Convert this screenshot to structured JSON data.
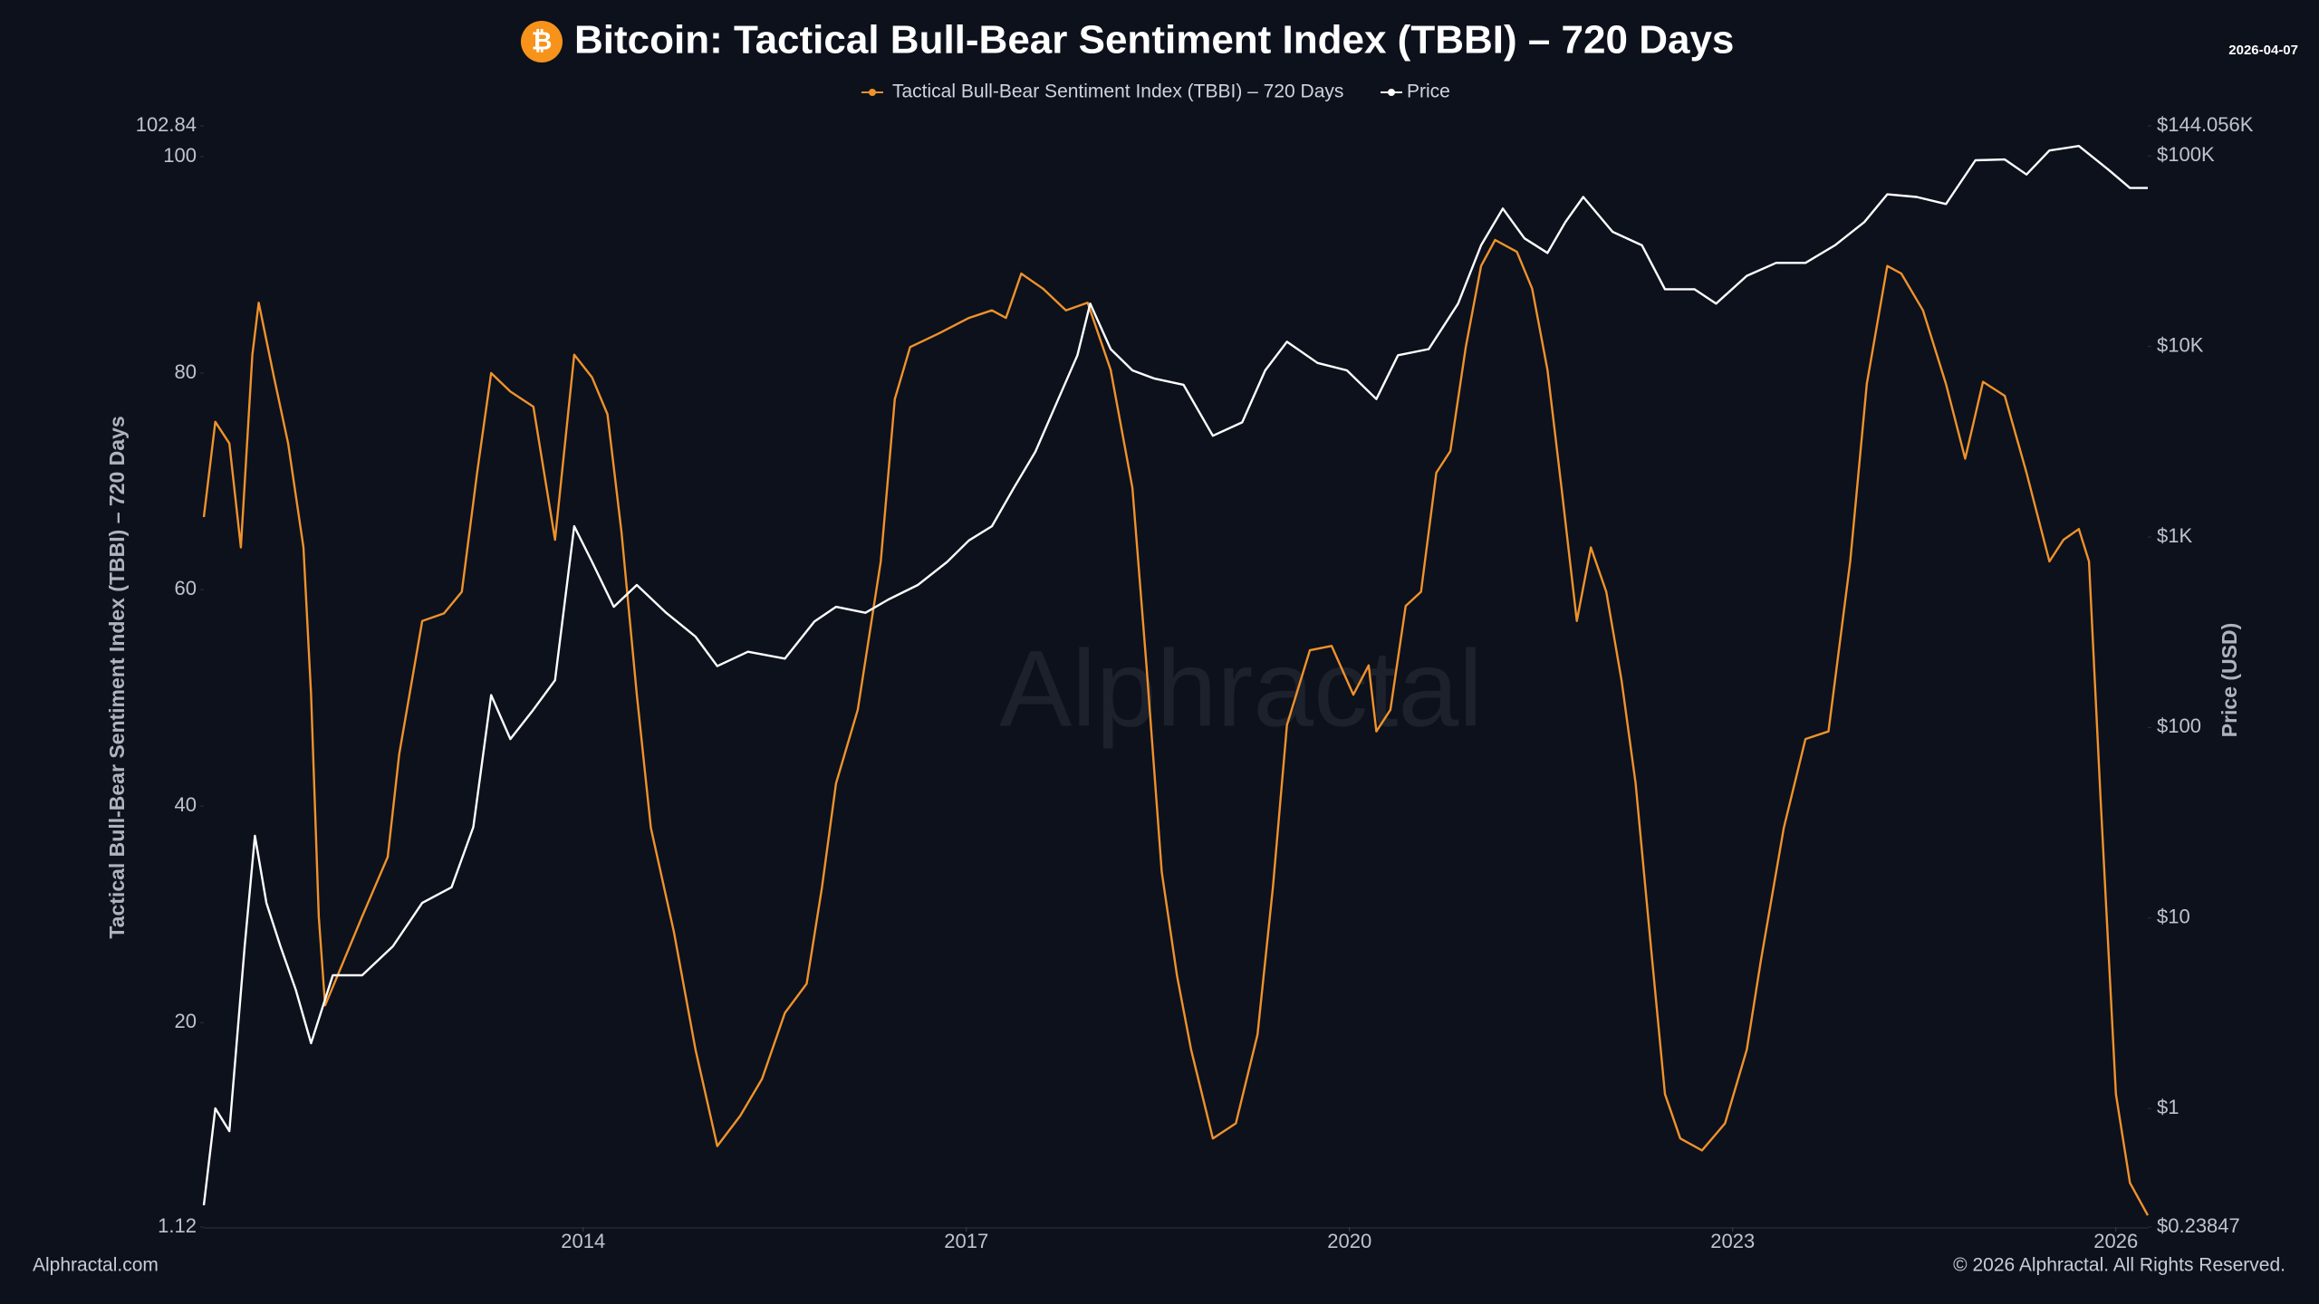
{
  "chart_data": {
    "type": "line",
    "title": "Bitcoin: Tactical Bull-Bear Sentiment Index (TBBI) – 720 Days",
    "title_icon": "₿",
    "date": "2026-04-07",
    "ylabel": "Tactical Bull-Bear Sentiment Index (TBBI) – 720 Days",
    "y2label": "Price (USD)",
    "watermark": "Alphractal",
    "footer_left": "Alphractal.com",
    "footer_right": "© 2026 Alphractal. All Rights Reserved.",
    "xlim": [
      2011.03,
      2026.25
    ],
    "xticks": [
      2014,
      2017,
      2020,
      2023,
      2026
    ],
    "ylim": [
      1.12,
      102.84
    ],
    "yticks": [
      1.12,
      20,
      40,
      60,
      80,
      100,
      102.84
    ],
    "y2lim": [
      0.23847,
      144056
    ],
    "y2log": true,
    "y2ticks": [
      {
        "value": 0.23847,
        "label": "$0.23847"
      },
      {
        "value": 1,
        "label": "$1"
      },
      {
        "value": 10,
        "label": "$10"
      },
      {
        "value": 100,
        "label": "$100"
      },
      {
        "value": 1000,
        "label": "$1K"
      },
      {
        "value": 10000,
        "label": "$10K"
      },
      {
        "value": 100000,
        "label": "$100K"
      },
      {
        "value": 144056,
        "label": "$144.056K"
      }
    ],
    "grid": false,
    "series": [
      {
        "name": "Tactical Bull-Bear Sentiment Index (TBBI) – 720 Days",
        "color": "#f0922b",
        "axis": "y",
        "x": [
          2011.03,
          2011.12,
          2011.23,
          2011.32,
          2011.41,
          2011.46,
          2011.58,
          2011.69,
          2011.81,
          2011.87,
          2011.93,
          2011.98,
          2012.1,
          2012.27,
          2012.47,
          2012.56,
          2012.74,
          2012.91,
          2013.05,
          2013.17,
          2013.28,
          2013.43,
          2013.61,
          2013.78,
          2013.93,
          2014.07,
          2014.19,
          2014.3,
          2014.42,
          2014.53,
          2014.71,
          2014.88,
          2015.05,
          2015.23,
          2015.4,
          2015.58,
          2015.75,
          2015.87,
          2015.98,
          2016.15,
          2016.33,
          2016.44,
          2016.56,
          2016.79,
          2017.02,
          2017.2,
          2017.31,
          2017.43,
          2017.6,
          2017.78,
          2017.95,
          2018.13,
          2018.3,
          2018.41,
          2018.53,
          2018.65,
          2018.76,
          2018.93,
          2019.11,
          2019.28,
          2019.4,
          2019.51,
          2019.69,
          2019.86,
          2020.03,
          2020.15,
          2020.21,
          2020.32,
          2020.44,
          2020.56,
          2020.68,
          2020.79,
          2020.91,
          2021.03,
          2021.14,
          2021.31,
          2021.43,
          2021.55,
          2021.66,
          2021.78,
          2021.89,
          2022.01,
          2022.13,
          2022.24,
          2022.36,
          2022.47,
          2022.59,
          2022.76,
          2022.94,
          2023.11,
          2023.22,
          2023.4,
          2023.57,
          2023.75,
          2023.92,
          2024.05,
          2024.21,
          2024.32,
          2024.49,
          2024.67,
          2024.82,
          2024.96,
          2025.13,
          2025.3,
          2025.48,
          2025.59,
          2025.71,
          2025.79,
          2025.88,
          2026.0,
          2026.11,
          2026.25
        ],
        "values": [
          66.7,
          75.5,
          73.5,
          63.9,
          81.7,
          86.5,
          79.6,
          73.5,
          63.9,
          50.3,
          29.8,
          21.6,
          25.0,
          29.8,
          35.3,
          44.8,
          57.1,
          57.8,
          59.8,
          70.8,
          80.0,
          78.3,
          76.9,
          64.6,
          81.7,
          79.6,
          76.2,
          65.3,
          50.3,
          38.0,
          28.4,
          17.5,
          8.6,
          11.4,
          14.8,
          20.9,
          23.6,
          32.5,
          42.1,
          48.9,
          62.6,
          77.6,
          82.4,
          83.7,
          85.1,
          85.8,
          85.1,
          89.2,
          87.8,
          85.8,
          86.5,
          80.3,
          69.4,
          53.0,
          33.9,
          24.3,
          17.5,
          9.3,
          10.7,
          18.9,
          32.5,
          47.5,
          54.4,
          54.8,
          50.3,
          53.0,
          46.9,
          48.9,
          58.5,
          59.8,
          70.8,
          72.8,
          82.4,
          89.9,
          92.3,
          91.2,
          87.8,
          80.3,
          69.4,
          57.1,
          63.9,
          59.8,
          51.6,
          42.1,
          27.0,
          13.4,
          9.3,
          8.2,
          10.7,
          17.5,
          25.7,
          38.0,
          46.2,
          46.9,
          62.6,
          79.0,
          89.9,
          89.2,
          85.8,
          79.0,
          72.1,
          79.2,
          77.9,
          70.8,
          62.6,
          64.6,
          65.6,
          62.6,
          40.8,
          13.4,
          5.2,
          2.2
        ]
      },
      {
        "name": "Price",
        "color": "#ffffff",
        "axis": "y2",
        "x": [
          2011.03,
          2011.12,
          2011.23,
          2011.35,
          2011.43,
          2011.52,
          2011.63,
          2011.75,
          2011.87,
          2012.04,
          2012.27,
          2012.51,
          2012.74,
          2012.97,
          2013.14,
          2013.28,
          2013.43,
          2013.61,
          2013.78,
          2013.93,
          2014.07,
          2014.24,
          2014.42,
          2014.65,
          2014.88,
          2015.05,
          2015.29,
          2015.58,
          2015.81,
          2015.98,
          2016.21,
          2016.39,
          2016.62,
          2016.85,
          2017.02,
          2017.2,
          2017.37,
          2017.54,
          2017.72,
          2017.87,
          2017.97,
          2018.13,
          2018.3,
          2018.47,
          2018.7,
          2018.93,
          2019.16,
          2019.34,
          2019.51,
          2019.75,
          2019.98,
          2020.21,
          2020.38,
          2020.62,
          2020.85,
          2021.03,
          2021.2,
          2021.37,
          2021.55,
          2021.69,
          2021.83,
          2022.06,
          2022.29,
          2022.47,
          2022.7,
          2022.87,
          2023.11,
          2023.34,
          2023.57,
          2023.8,
          2024.03,
          2024.21,
          2024.44,
          2024.67,
          2024.9,
          2025.13,
          2025.3,
          2025.48,
          2025.71,
          2025.94,
          2026.11,
          2026.25
        ],
        "values": [
          0.31,
          1.0,
          0.76,
          7.1,
          27,
          12,
          7.1,
          4.2,
          2.2,
          5,
          5,
          7.1,
          12,
          14.5,
          30,
          148,
          87,
          124,
          177,
          1140,
          740,
          430,
          560,
          400,
          300,
          210,
          250,
          230,
          360,
          430,
          400,
          470,
          560,
          740,
          960,
          1140,
          1800,
          2800,
          5300,
          9000,
          16800,
          9700,
          7500,
          6800,
          6300,
          3400,
          4000,
          7500,
          10600,
          8200,
          7500,
          5300,
          9000,
          9700,
          16800,
          34000,
          53000,
          37000,
          31000,
          45000,
          61000,
          40000,
          34000,
          20000,
          20000,
          16800,
          23500,
          27500,
          27500,
          34000,
          45000,
          63000,
          61000,
          56000,
          95000,
          96000,
          80000,
          107000,
          113000,
          85000,
          68000,
          68000
        ]
      }
    ]
  }
}
